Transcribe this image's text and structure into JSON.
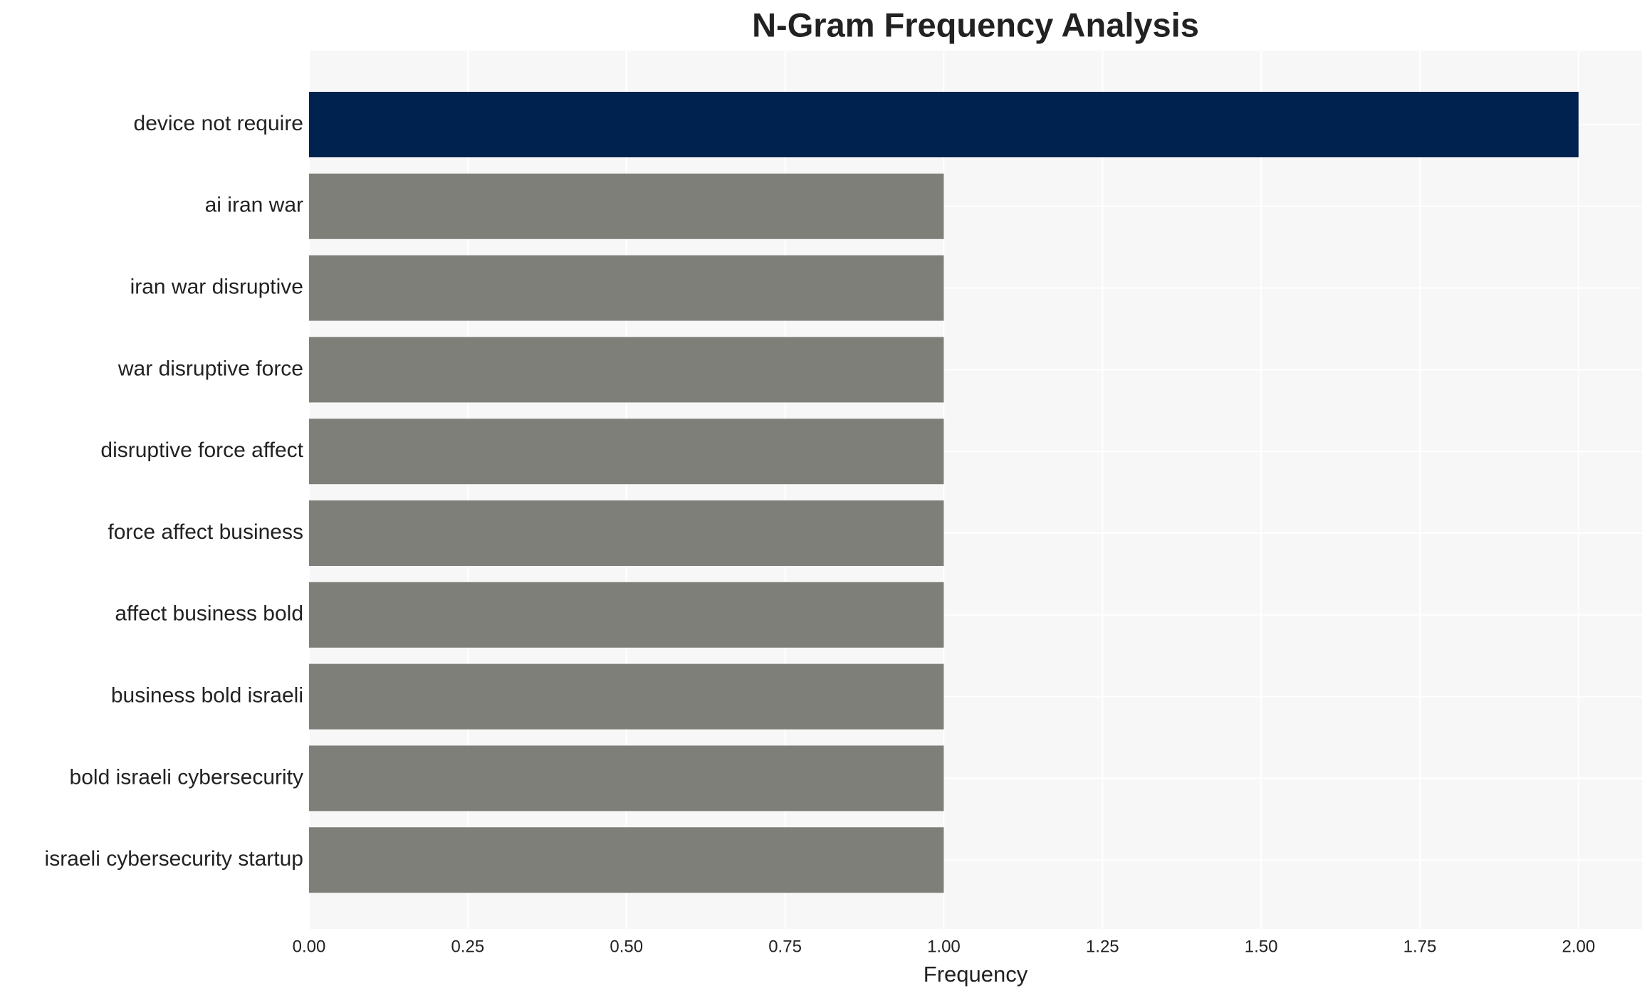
{
  "chart_data": {
    "type": "bar",
    "orientation": "horizontal",
    "title": "N-Gram Frequency Analysis",
    "x_label": "Frequency",
    "categories": [
      "device not require",
      "ai iran war",
      "iran war disruptive",
      "war disruptive force",
      "disruptive force affect",
      "force affect business",
      "affect business bold",
      "business bold israeli",
      "bold israeli cybersecurity",
      "israeli cybersecurity startup"
    ],
    "values": [
      2,
      1,
      1,
      1,
      1,
      1,
      1,
      1,
      1,
      1
    ],
    "colors": [
      "#00224e",
      "#7f7f7a",
      "#7f7f7a",
      "#7f7f7a",
      "#7f7f7a",
      "#7f7f7a",
      "#7f7f7a",
      "#7f7f7a",
      "#7f7f7a",
      "#7f7f7a"
    ],
    "xlim": [
      0,
      2.1
    ],
    "xticks": [
      {
        "value": 0,
        "label": "0.00"
      },
      {
        "value": 0.25,
        "label": "0.25"
      },
      {
        "value": 0.5,
        "label": "0.50"
      },
      {
        "value": 0.75,
        "label": "0.75"
      },
      {
        "value": 1,
        "label": "1.00"
      },
      {
        "value": 1.25,
        "label": "1.25"
      },
      {
        "value": 1.5,
        "label": "1.50"
      },
      {
        "value": 1.75,
        "label": "1.75"
      },
      {
        "value": 2,
        "label": "2.00"
      }
    ],
    "grid": true
  }
}
